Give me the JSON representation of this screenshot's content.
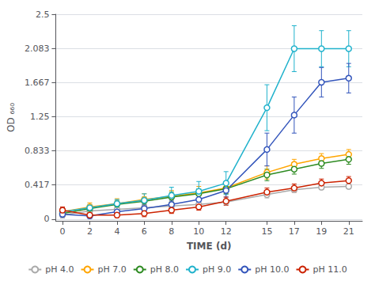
{
  "chart_data": {
    "type": "line",
    "xlabel": "TIME (d)",
    "ylabel": "OD ₆₆₀",
    "x": [
      0,
      2,
      4,
      6,
      8,
      10,
      12,
      15,
      17,
      19,
      21
    ],
    "series": [
      {
        "name": "pH 4.0",
        "color": "#aaaaaa",
        "marker": "circle",
        "values": [
          0.05,
          0.1,
          0.12,
          0.14,
          0.16,
          0.18,
          0.21,
          0.3,
          0.36,
          0.39,
          0.4
        ],
        "errors": [
          0.03,
          0.04,
          0.03,
          0.03,
          0.03,
          0.03,
          0.03,
          0.04,
          0.03,
          0.03,
          0.03
        ]
      },
      {
        "name": "pH 7.0",
        "color": "#FFA500",
        "marker": "circle",
        "values": [
          0.09,
          0.15,
          0.19,
          0.24,
          0.28,
          0.32,
          0.38,
          0.57,
          0.67,
          0.74,
          0.79
        ],
        "errors": [
          0.05,
          0.05,
          0.06,
          0.07,
          0.07,
          0.08,
          0.07,
          0.08,
          0.06,
          0.06,
          0.06
        ]
      },
      {
        "name": "pH 8.0",
        "color": "#2E8B22",
        "marker": "circle",
        "values": [
          0.07,
          0.13,
          0.18,
          0.22,
          0.27,
          0.31,
          0.37,
          0.54,
          0.61,
          0.68,
          0.73
        ],
        "errors": [
          0.04,
          0.04,
          0.05,
          0.05,
          0.06,
          0.06,
          0.06,
          0.07,
          0.06,
          0.06,
          0.06
        ]
      },
      {
        "name": "pH 9.0",
        "color": "#20B2CC",
        "marker": "circle",
        "values": [
          0.09,
          0.14,
          0.19,
          0.23,
          0.29,
          0.34,
          0.44,
          1.36,
          2.08,
          2.08,
          2.08
        ],
        "errors": [
          0.05,
          0.04,
          0.05,
          0.08,
          0.1,
          0.12,
          0.14,
          0.28,
          0.28,
          0.22,
          0.22
        ]
      },
      {
        "name": "pH 10.0",
        "color": "#3355BB",
        "marker": "circle",
        "values": [
          0.06,
          0.04,
          0.09,
          0.13,
          0.18,
          0.24,
          0.35,
          0.85,
          1.27,
          1.67,
          1.72
        ],
        "errors": [
          0.04,
          0.03,
          0.04,
          0.05,
          0.05,
          0.06,
          0.08,
          0.2,
          0.22,
          0.18,
          0.18
        ]
      },
      {
        "name": "pH 11.0",
        "color": "#CC2200",
        "marker": "circle",
        "values": [
          0.11,
          0.05,
          0.05,
          0.07,
          0.11,
          0.15,
          0.22,
          0.33,
          0.38,
          0.44,
          0.47
        ],
        "errors": [
          0.04,
          0.03,
          0.03,
          0.04,
          0.04,
          0.04,
          0.05,
          0.05,
          0.05,
          0.05,
          0.05
        ]
      }
    ],
    "xlim": [
      -0.5,
      22
    ],
    "xticks": [
      0,
      2,
      4,
      6,
      8,
      10,
      12,
      15,
      17,
      19,
      21
    ],
    "ylim": [
      -0.02,
      2.5
    ],
    "yticks": [
      0,
      0.417,
      0.833,
      1.25,
      1.667,
      2.083,
      2.5
    ],
    "grid": "y",
    "legend": "bottom"
  }
}
